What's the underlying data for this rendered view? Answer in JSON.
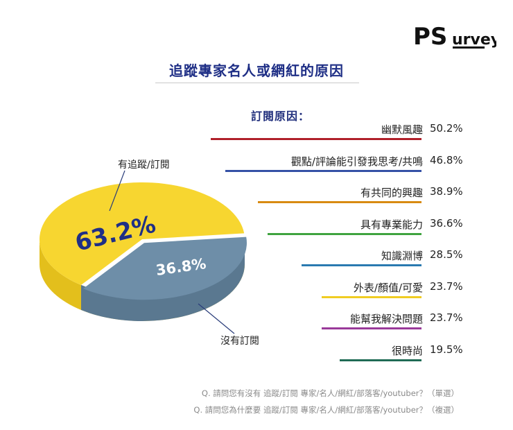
{
  "brand": {
    "logo_text_ps": "PS",
    "logo_text_urvey": "urvey"
  },
  "title": "追蹤專家名人或網紅的原因",
  "pie": {
    "followed_label": "有追蹤/訂閱",
    "followed_value": "63.2%",
    "not_followed_label": "沒有訂閱",
    "not_followed_value": "36.8%"
  },
  "reasons_heading": "訂閱原因：",
  "footnotes": [
    "Q. 請問您有沒有 追蹤/訂閱 專家/名人/網紅/部落客/youtuber？（單選）",
    "Q. 請問您為什麼要 追蹤/訂閱 專家/名人/網紅/部落客/youtuber？（複選）"
  ],
  "colors": {
    "pie_yellow": "#f7d630",
    "pie_yellow_side": "#e3bf1c",
    "pie_blue": "#6e8ea8",
    "pie_blue_side": "#5a7890",
    "title_navy": "#1f2f86"
  },
  "chart_data": [
    {
      "type": "pie",
      "title": "",
      "categories": [
        "有追蹤/訂閱",
        "沒有訂閱"
      ],
      "values": [
        63.2,
        36.8
      ],
      "colors": [
        "#f7d630",
        "#6e8ea8"
      ]
    },
    {
      "type": "bar",
      "title": "訂閱原因：",
      "orientation": "horizontal",
      "categories": [
        "幽默風趣",
        "觀點/評論能引發我思考/共鳴",
        "有共同的興趣",
        "具有專業能力",
        "知識淵博",
        "外表/顏值/可愛",
        "能幫我解決問題",
        "很時尚"
      ],
      "values": [
        50.2,
        46.8,
        38.9,
        36.6,
        28.5,
        23.7,
        23.7,
        19.5
      ],
      "value_labels": [
        "50.2%",
        "46.8%",
        "38.9%",
        "36.6%",
        "28.5%",
        "23.7%",
        "23.7%",
        "19.5%"
      ],
      "colors": [
        "#b0202a",
        "#3551a6",
        "#d88a12",
        "#3fa33f",
        "#2a7ab0",
        "#f0cc22",
        "#9a3a9a",
        "#1f6b55"
      ],
      "xlim": [
        0,
        50.2
      ]
    }
  ]
}
